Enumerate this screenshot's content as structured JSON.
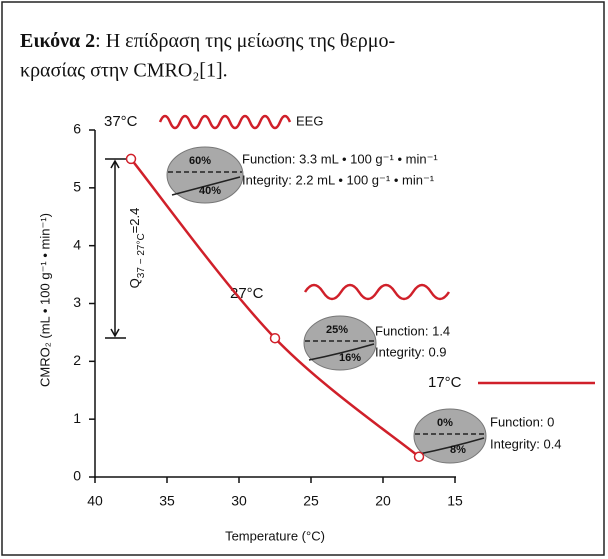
{
  "caption": {
    "label": "Εικόνα 2",
    "line1": ": Η επίδραση της μείωσης της θερμο-",
    "line2": "κρασίας στην CMRO₂[1]."
  },
  "chart_data": {
    "type": "line",
    "xlabel": "Temperature (°C)",
    "ylabel": "CMRO₂ (mL • 100 g⁻¹ • min⁻¹)",
    "x": [
      37.5,
      27.5,
      17.5
    ],
    "values": [
      5.5,
      2.4,
      0.35
    ],
    "color": "#d0202a",
    "xlim": [
      40,
      15
    ],
    "ylim": [
      0,
      6
    ],
    "xticks": [
      40,
      35,
      30,
      25,
      20,
      15
    ],
    "yticks": [
      0,
      1,
      2,
      3,
      4,
      5,
      6
    ],
    "q_annotation": {
      "base": "Q",
      "sub": "37 − 27°C",
      "rest": "=2.4"
    },
    "annotations": {
      "t37": "37°C",
      "eeg": "EEG",
      "b37_top": "60%",
      "b37_bottom": "40%",
      "f37": "Function: 3.3 mL • 100 g⁻¹ • min⁻¹",
      "i37": "Integrity: 2.2 mL • 100 g⁻¹ • min⁻¹",
      "t27": "27°C",
      "b27_top": "25%",
      "b27_bottom": "16%",
      "f27": "Function: 1.4",
      "i27": "Integrity: 0.9",
      "t17": "17°C",
      "b17_top": "0%",
      "b17_bottom": "8%",
      "f17": "Function: 0",
      "i17": "Integrity: 0.4"
    }
  }
}
